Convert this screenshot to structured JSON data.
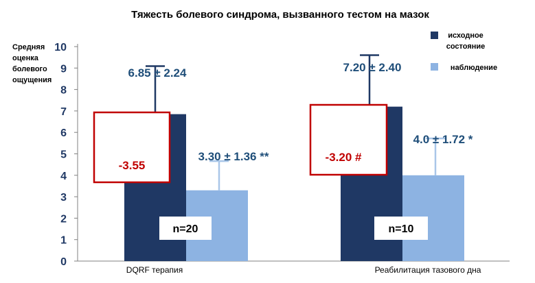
{
  "chart_data": {
    "type": "bar",
    "title": "Тяжесть болевого синдрома, вызванного тестом на мазок",
    "ylabel": [
      "Средняя",
      "оценка",
      "болевого",
      "ощущения"
    ],
    "ylim": [
      0,
      10
    ],
    "yticks": [
      0,
      1,
      2,
      3,
      4,
      5,
      6,
      7,
      8,
      9,
      10
    ],
    "grid": false,
    "legend_position": "top-right",
    "categories": [
      "DQRF терапия",
      "Реабилитация тазового дна"
    ],
    "series": [
      {
        "name": "исходное состояние",
        "legend_lines": [
          "исходное",
          "состояние"
        ],
        "color": "#1f3864",
        "values": [
          6.85,
          7.2
        ],
        "errors": [
          2.24,
          2.4
        ],
        "error_color": "#1f3864",
        "labels": [
          "6.85 ± 2.24",
          "7.20 ± 2.40"
        ]
      },
      {
        "name": "наблюдение",
        "legend_lines": [
          "наблюдение"
        ],
        "color": "#8db3e2",
        "values": [
          3.3,
          4.0
        ],
        "errors": [
          1.36,
          1.72
        ],
        "error_color": "#a9c6e8",
        "labels": [
          "3.30 ± 1.36 **",
          "4.0 ± 1.72 *"
        ]
      }
    ],
    "annotations": {
      "differences": [
        "-3.55",
        "-3.20 #"
      ],
      "difference_color": "#c00000",
      "sample_sizes": [
        "n=20",
        "n=10"
      ]
    },
    "label_color": "#1f4e79",
    "axis_label_color": "#1f3864"
  }
}
